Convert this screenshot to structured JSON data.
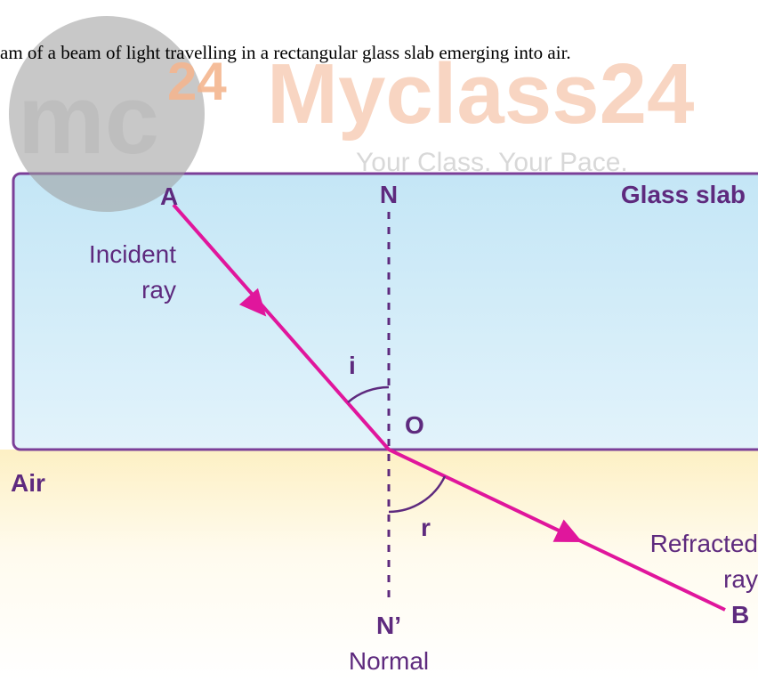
{
  "caption": "am of a beam of light travelling in a rectangular glass slab emerging into air.",
  "watermark": {
    "logo": "mc",
    "superscript": "24",
    "brand": "Myclass24",
    "tagline": "Your Class. Your Pace."
  },
  "labels": {
    "point_a": "A",
    "incident_ray": [
      "Incident",
      "ray"
    ],
    "normal_top": "N",
    "medium_glass": "Glass slab",
    "angle_i": "i",
    "point_o": "O",
    "medium_air": "Air",
    "angle_r": "r",
    "refracted_ray": [
      "Refracted",
      "ray"
    ],
    "normal_bottom": "N’",
    "normal": "Normal",
    "point_b": "B"
  }
}
